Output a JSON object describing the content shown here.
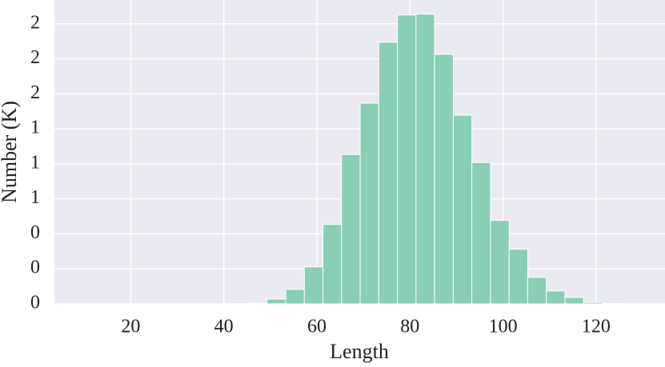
{
  "chart_data": {
    "type": "histogram",
    "xlabel": "Length",
    "ylabel": "Number (K)",
    "bins": [
      41.3,
      45.3,
      49.3,
      53.3,
      57.3,
      61.3,
      65.3,
      69.3,
      73.3,
      77.3,
      81.3,
      85.3,
      89.3,
      93.3,
      97.3,
      101.3,
      105.3,
      109.3,
      113.3,
      117.3,
      121.3,
      125.3
    ],
    "values": [
      0.001,
      0.006,
      0.034,
      0.103,
      0.264,
      0.567,
      1.066,
      1.433,
      1.868,
      2.063,
      2.069,
      1.782,
      1.347,
      1.009,
      0.596,
      0.39,
      0.189,
      0.092,
      0.046,
      0.011,
      0.003
    ],
    "color": "#88cfb6",
    "xlim": [
      3.6,
      134.8
    ],
    "xticks": [
      20,
      40,
      60,
      80,
      100,
      120
    ],
    "ylim": [
      0,
      2.17
    ],
    "yticks": [
      0,
      {
        "value": 0.25,
        "label": "0"
      },
      {
        "value": 0.5,
        "label": "0"
      },
      {
        "value": 0.75,
        "label": "1"
      },
      1,
      {
        "value": 1.25,
        "label": "1"
      },
      {
        "value": 1.5,
        "label": "2"
      },
      {
        "value": 1.75,
        "label": "2"
      },
      2
    ],
    "grid": true
  }
}
